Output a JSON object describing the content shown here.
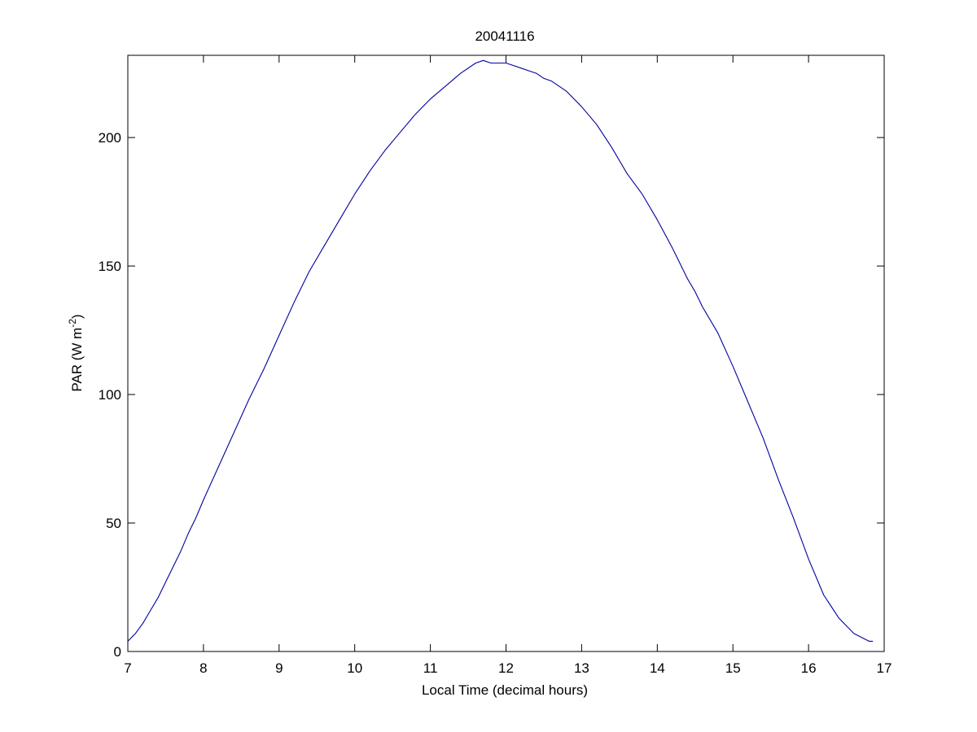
{
  "chart_data": {
    "type": "line",
    "title": "20041116",
    "xlabel": "Local Time (decimal hours)",
    "ylabel": {
      "prefix": "PAR (W m",
      "superscript": "-2",
      "suffix": ")"
    },
    "xlim": [
      7,
      17
    ],
    "ylim": [
      0,
      232
    ],
    "xticks": [
      7,
      8,
      9,
      10,
      11,
      12,
      13,
      14,
      15,
      16,
      17
    ],
    "yticks": [
      0,
      50,
      100,
      150,
      200
    ],
    "grid": false,
    "line_color": "#0000a0",
    "series": [
      {
        "x": [
          7.0,
          7.1,
          7.2,
          7.3,
          7.4,
          7.5,
          7.6,
          7.7,
          7.8,
          7.9,
          8.0,
          8.2,
          8.4,
          8.6,
          8.8,
          9.0,
          9.2,
          9.4,
          9.6,
          9.8,
          10.0,
          10.2,
          10.4,
          10.6,
          10.8,
          11.0,
          11.2,
          11.4,
          11.6,
          11.7,
          11.8,
          11.9,
          12.0,
          12.1,
          12.2,
          12.3,
          12.4,
          12.5,
          12.6,
          12.8,
          13.0,
          13.2,
          13.4,
          13.6,
          13.8,
          14.0,
          14.2,
          14.4,
          14.5,
          14.6,
          14.8,
          15.0,
          15.2,
          15.4,
          15.6,
          15.8,
          16.0,
          16.2,
          16.4,
          16.6,
          16.8,
          16.85
        ],
        "y": [
          4,
          7,
          11,
          16,
          21,
          27,
          33,
          39,
          46,
          52,
          59,
          72,
          85,
          98,
          110,
          123,
          136,
          148,
          158,
          168,
          178,
          187,
          195,
          202,
          209,
          215,
          220,
          225,
          229,
          230,
          229,
          229,
          229,
          228,
          227,
          226,
          225,
          223,
          222,
          218,
          212,
          205,
          196,
          186,
          178,
          168,
          157,
          145,
          140,
          134,
          124,
          111,
          97,
          83,
          67,
          52,
          36,
          22,
          13,
          7,
          4,
          4
        ]
      }
    ]
  }
}
